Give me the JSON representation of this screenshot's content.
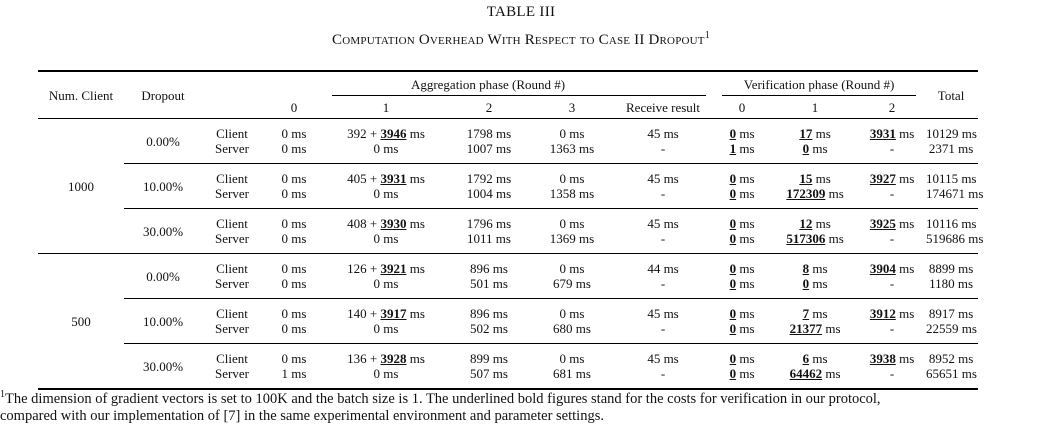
{
  "caption": {
    "table_label": "TABLE III",
    "title": "Computation Overhead With Respect to Case II Dropout",
    "title_note_mark": "1"
  },
  "header": {
    "num_client": "Num. Client",
    "dropout": "Dropout",
    "aggregation_phase": "Aggregation phase (Round #)",
    "verification_phase": "Verification phase (Round #)",
    "total": "Total",
    "agg_rounds": [
      "0",
      "1",
      "2",
      "3",
      "Receive result"
    ],
    "ver_rounds": [
      "0",
      "1",
      "2"
    ]
  },
  "roles": [
    "Client",
    "Server"
  ],
  "groups": [
    {
      "num_client": "1000",
      "rows": [
        {
          "dropout": "0.00%",
          "client": [
            "0 ms",
            "392 + |3946| ms",
            "1798 ms",
            "0 ms",
            "45 ms",
            "|0| ms",
            "|17| ms",
            "|3931| ms",
            "10129 ms"
          ],
          "server": [
            "0 ms",
            "0 ms",
            "1007 ms",
            "1363 ms",
            "-",
            "|1| ms",
            "|0| ms",
            "-",
            "2371 ms"
          ]
        },
        {
          "dropout": "10.00%",
          "client": [
            "0 ms",
            "405 + |3931| ms",
            "1792 ms",
            "0 ms",
            "45 ms",
            "|0| ms",
            "|15| ms",
            "|3927| ms",
            "10115 ms"
          ],
          "server": [
            "0 ms",
            "0 ms",
            "1004 ms",
            "1358 ms",
            "-",
            "|0| ms",
            "|172309| ms",
            "-",
            "174671 ms"
          ]
        },
        {
          "dropout": "30.00%",
          "client": [
            "0 ms",
            "408 + |3930| ms",
            "1796 ms",
            "0 ms",
            "45 ms",
            "|0| ms",
            "|12| ms",
            "|3925| ms",
            "10116 ms"
          ],
          "server": [
            "0 ms",
            "0 ms",
            "1011 ms",
            "1369 ms",
            "-",
            "|0| ms",
            "|517306| ms",
            "-",
            "519686 ms"
          ]
        }
      ]
    },
    {
      "num_client": "500",
      "rows": [
        {
          "dropout": "0.00%",
          "client": [
            "0 ms",
            "126 + |3921| ms",
            "896 ms",
            "0 ms",
            "44 ms",
            "|0| ms",
            "|8| ms",
            "|3904| ms",
            "8899 ms"
          ],
          "server": [
            "0 ms",
            "0 ms",
            "501 ms",
            "679 ms",
            "-",
            "|0| ms",
            "|0| ms",
            "-",
            "1180 ms"
          ]
        },
        {
          "dropout": "10.00%",
          "client": [
            "0 ms",
            "140 + |3917| ms",
            "896 ms",
            "0 ms",
            "45 ms",
            "|0| ms",
            "|7| ms",
            "|3912| ms",
            "8917 ms"
          ],
          "server": [
            "0 ms",
            "0 ms",
            "502 ms",
            "680 ms",
            "-",
            "|0| ms",
            "|21377| ms",
            "-",
            "22559 ms"
          ]
        },
        {
          "dropout": "30.00%",
          "client": [
            "0 ms",
            "136 + |3928| ms",
            "899 ms",
            "0 ms",
            "45 ms",
            "|0| ms",
            "|6| ms",
            "|3938| ms",
            "8952 ms"
          ],
          "server": [
            "1 ms",
            "0 ms",
            "507 ms",
            "681 ms",
            "-",
            "|0| ms",
            "|64462| ms",
            "-",
            "65651 ms"
          ]
        }
      ]
    }
  ],
  "footnote": {
    "mark": "1",
    "line1": "The dimension of gradient vectors is set to 100K and the batch size is 1. The underlined bold figures stand for the costs for verification in our protocol,",
    "line2": "compared with our implementation of [7] in the same experimental environment and parameter settings."
  }
}
